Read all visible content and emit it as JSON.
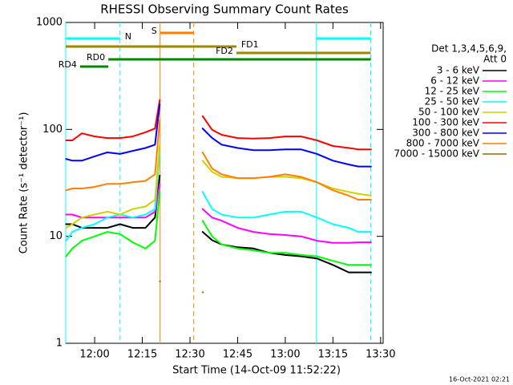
{
  "chart_data": {
    "type": "line",
    "title": "RHESSI Observing Summary Count Rates",
    "xlabel": "Start Time (14-Oct-09 11:52:22)",
    "ylabel": "Count Rate (s⁻¹ detector⁻¹)",
    "legend_title": [
      "Det 1,3,4,5,6,9,",
      "Att 0"
    ],
    "footer": "16-Oct-2021 02:21",
    "log_y": true,
    "xlim": [
      710.9,
      810.8
    ],
    "xticks": [
      {
        "value": 720,
        "label": "12:00"
      },
      {
        "value": 735,
        "label": "12:15"
      },
      {
        "value": 750,
        "label": "12:30"
      },
      {
        "value": 765,
        "label": "12:45"
      },
      {
        "value": 780,
        "label": "13:00"
      },
      {
        "value": 795,
        "label": "13:15"
      },
      {
        "value": 810,
        "label": "13:30"
      }
    ],
    "ylim": [
      1,
      1000
    ],
    "yticks": [
      1,
      10,
      100,
      1000
    ],
    "x": [
      711,
      713,
      716,
      720,
      724,
      728,
      732,
      736,
      739,
      740.5,
      747,
      754,
      757,
      760,
      765,
      770,
      775,
      780,
      785,
      790,
      795,
      800,
      803,
      807
    ],
    "series": [
      {
        "name": "3 - 6 keV",
        "color": "#000000",
        "values": [
          13,
          13,
          12,
          12,
          12,
          13,
          12,
          12,
          15,
          37,
          null,
          11,
          9.2,
          8.4,
          7.9,
          7.7,
          7.0,
          6.7,
          6.5,
          6.2,
          5.4,
          4.6,
          4.6,
          4.6
        ]
      },
      {
        "name": "6 - 12 keV",
        "color": "#ff00ff",
        "values": [
          16,
          16,
          15,
          15,
          15,
          15,
          15,
          15,
          17,
          31,
          null,
          18,
          15,
          14,
          12,
          11,
          10.5,
          10.3,
          10,
          9.1,
          8.7,
          8.7,
          8.8,
          8.8
        ]
      },
      {
        "name": "12 - 25 keV",
        "color": "#00ff00",
        "values": [
          6.5,
          7.7,
          9.1,
          10,
          11,
          10.5,
          8.8,
          7.7,
          9.1,
          26,
          null,
          14,
          10,
          8.4,
          7.7,
          7.4,
          7.0,
          7.0,
          6.7,
          6.5,
          5.9,
          5.4,
          5.4,
          5.4
        ]
      },
      {
        "name": "25 - 50 keV",
        "color": "#00ffff",
        "values": [
          9.1,
          11,
          12,
          13,
          15,
          16,
          15,
          16,
          18,
          61,
          null,
          26,
          18,
          16,
          15,
          15,
          16,
          17,
          17,
          15,
          13,
          12,
          11,
          11
        ]
      },
      {
        "name": "50 - 100 keV",
        "color": "#d0d000",
        "values": [
          12,
          13,
          15,
          16,
          17,
          16,
          18,
          19,
          22,
          72,
          null,
          51,
          40,
          36,
          35,
          35,
          36,
          36,
          35,
          32,
          28,
          26,
          25,
          24
        ]
      },
      {
        "name": "100 - 300 keV",
        "color": "#ff0000",
        "values": [
          79,
          79,
          92,
          86,
          83,
          83,
          86,
          94,
          102,
          188,
          null,
          133,
          99,
          89,
          83,
          82,
          83,
          86,
          86,
          79,
          70,
          67,
          65,
          65
        ]
      },
      {
        "name": "300 - 800 keV",
        "color": "#0000ff",
        "values": [
          53,
          51,
          51,
          56,
          61,
          59,
          63,
          67,
          72,
          172,
          null,
          102,
          83,
          72,
          67,
          64,
          64,
          65,
          65,
          59,
          51,
          47,
          45,
          45
        ]
      },
      {
        "name": "800 - 7000 keV",
        "color": "#ff8000",
        "values": [
          27,
          28,
          28,
          29,
          31,
          31,
          32,
          33,
          38,
          122,
          null,
          61,
          43,
          38,
          35,
          35,
          36,
          38,
          36,
          32,
          27,
          24,
          22,
          22
        ]
      },
      {
        "name": "7000 - 15000 keV",
        "color": "#996600",
        "values": [
          null,
          null,
          null,
          null,
          null,
          null,
          null,
          null,
          null,
          3.8,
          null,
          3.0,
          null,
          null,
          null,
          null,
          null,
          null,
          null,
          null,
          null,
          null,
          null,
          null
        ]
      }
    ],
    "segments": [
      {
        "label": "N",
        "color": "#00ffff",
        "x": [
          710.9,
          728.0
        ],
        "vlines": true,
        "label_at": "end"
      },
      {
        "label": null,
        "color": "#00ffff",
        "x": [
          789.8,
          806.9
        ],
        "vlines": true,
        "label_at": "end"
      },
      {
        "label": "S",
        "color": "#ff8000",
        "x": [
          740.6,
          751.2
        ],
        "vlines": true,
        "label_at": "start"
      },
      {
        "label": "FD1",
        "color": "#998800",
        "x": [
          710.9,
          764.6
        ],
        "vlines": false,
        "label_at": "end"
      },
      {
        "label": "FD2",
        "color": "#998800",
        "x": [
          764.6,
          806.9
        ],
        "vlines": false,
        "label_at": "start"
      },
      {
        "label": "RD0",
        "color": "#008800",
        "x": [
          724.3,
          806.9
        ],
        "vlines": false,
        "label_at": "start"
      },
      {
        "label": "RD4",
        "color": "#008800",
        "x": [
          715.4,
          724.3
        ],
        "vlines": false,
        "label_at": "start"
      }
    ]
  }
}
